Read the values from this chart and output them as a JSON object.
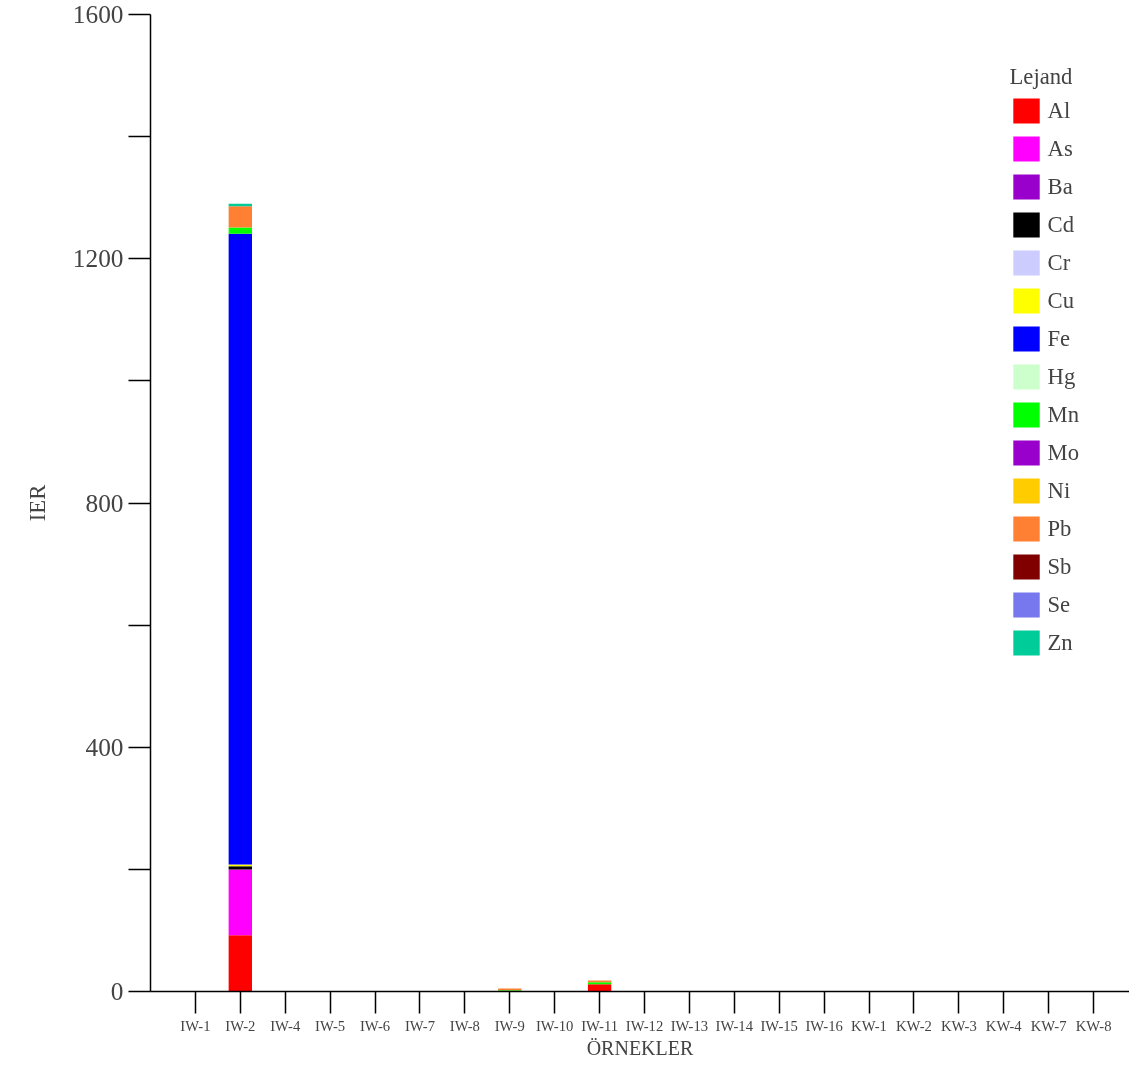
{
  "chart_data": {
    "type": "bar",
    "stacked": true,
    "xlabel": "ÖRNEKLER",
    "ylabel": "IER",
    "legend_title": "Lejand",
    "legend": "top right",
    "grid": false,
    "categories": [
      "IW-1",
      "IW-2",
      "IW-4",
      "IW-5",
      "IW-6",
      "IW-7",
      "IW-8",
      "IW-9",
      "IW-10",
      "IW-11",
      "IW-12",
      "IW-13",
      "IW-14",
      "IW-15",
      "IW-16",
      "KW-1",
      "KW-2",
      "KW-3",
      "KW-4",
      "KW-7",
      "KW-8"
    ],
    "ylim": [
      0,
      1600
    ],
    "yticks": [
      0,
      400,
      800,
      1200,
      1600
    ],
    "series": [
      {
        "name": "Al",
        "color": "#ff0000",
        "values": [
          0,
          92,
          0,
          0,
          0,
          0,
          0,
          0,
          0,
          12,
          0,
          0,
          0,
          0,
          0,
          0,
          0,
          0,
          0,
          0,
          0
        ]
      },
      {
        "name": "As",
        "color": "#ff00ff",
        "values": [
          0,
          108,
          0,
          0,
          0,
          0,
          0,
          0,
          0,
          0,
          0,
          0,
          0,
          0,
          0,
          0,
          0,
          0,
          0,
          0,
          0
        ]
      },
      {
        "name": "Ba",
        "color": "#9900cc",
        "values": [
          0,
          0,
          0,
          0,
          0,
          0,
          0,
          0,
          0,
          0,
          0,
          0,
          0,
          0,
          0,
          0,
          0,
          0,
          0,
          0,
          0
        ]
      },
      {
        "name": "Cd",
        "color": "#000000",
        "values": [
          0,
          5,
          0,
          0,
          0,
          0,
          0,
          0,
          0,
          0,
          0,
          0,
          0,
          0,
          0,
          0,
          0,
          0,
          0,
          0,
          0
        ]
      },
      {
        "name": "Cr",
        "color": "#ccccff",
        "values": [
          0,
          0,
          0,
          0,
          0,
          0,
          0,
          0,
          0,
          0,
          0,
          0,
          0,
          0,
          0,
          0,
          0,
          0,
          0,
          0,
          0
        ]
      },
      {
        "name": "Cu",
        "color": "#ffff00",
        "values": [
          0,
          3,
          0,
          0,
          0,
          0,
          0,
          0,
          0,
          0,
          0,
          0,
          0,
          0,
          0,
          0,
          0,
          0,
          0,
          0,
          0
        ]
      },
      {
        "name": "Fe",
        "color": "#0000ff",
        "values": [
          0,
          1033,
          0,
          0,
          0,
          0,
          0,
          0,
          0,
          0,
          0,
          0,
          0,
          0,
          0,
          0,
          0,
          0,
          0,
          0,
          0
        ]
      },
      {
        "name": "Hg",
        "color": "#ccffcc",
        "values": [
          0,
          0,
          0,
          0,
          0,
          0,
          0,
          0,
          0,
          0,
          0,
          0,
          0,
          0,
          0,
          0,
          0,
          0,
          0,
          0,
          0
        ]
      },
      {
        "name": "Mn",
        "color": "#00ff00",
        "values": [
          0,
          10,
          0,
          0,
          0,
          0,
          0,
          2,
          0,
          3,
          0,
          0,
          0,
          0,
          0,
          0,
          0,
          0,
          0,
          0,
          0
        ]
      },
      {
        "name": "Mo",
        "color": "#9900cc",
        "values": [
          0,
          0,
          0,
          0,
          0,
          0,
          0,
          0,
          0,
          0,
          0,
          0,
          0,
          0,
          0,
          0,
          0,
          0,
          0,
          0,
          0
        ]
      },
      {
        "name": "Ni",
        "color": "#ffcc00",
        "values": [
          0,
          0,
          0,
          0,
          0,
          0,
          0,
          0,
          0,
          0,
          0,
          0,
          0,
          0,
          0,
          0,
          0,
          0,
          0,
          0,
          0
        ]
      },
      {
        "name": "Pb",
        "color": "#ff8033",
        "values": [
          0,
          35,
          0,
          0,
          0,
          0,
          0,
          3,
          0,
          3,
          0,
          0,
          0,
          0,
          0,
          0,
          0,
          0,
          0,
          0,
          0
        ]
      },
      {
        "name": "Sb",
        "color": "#800000",
        "values": [
          0,
          0,
          0,
          0,
          0,
          0,
          0,
          0,
          0,
          0,
          0,
          0,
          0,
          0,
          0,
          0,
          0,
          0,
          0,
          0,
          0
        ]
      },
      {
        "name": "Se",
        "color": "#7777ee",
        "values": [
          0,
          0,
          0,
          0,
          0,
          0,
          0,
          0,
          0,
          0,
          0,
          0,
          0,
          0,
          0,
          0,
          0,
          0,
          0,
          0,
          0
        ]
      },
      {
        "name": "Zn",
        "color": "#00cc99",
        "values": [
          0,
          4,
          0,
          0,
          0,
          0,
          0,
          0,
          0,
          0,
          0,
          0,
          0,
          0,
          0,
          0,
          0,
          0,
          0,
          0,
          0
        ]
      }
    ]
  }
}
